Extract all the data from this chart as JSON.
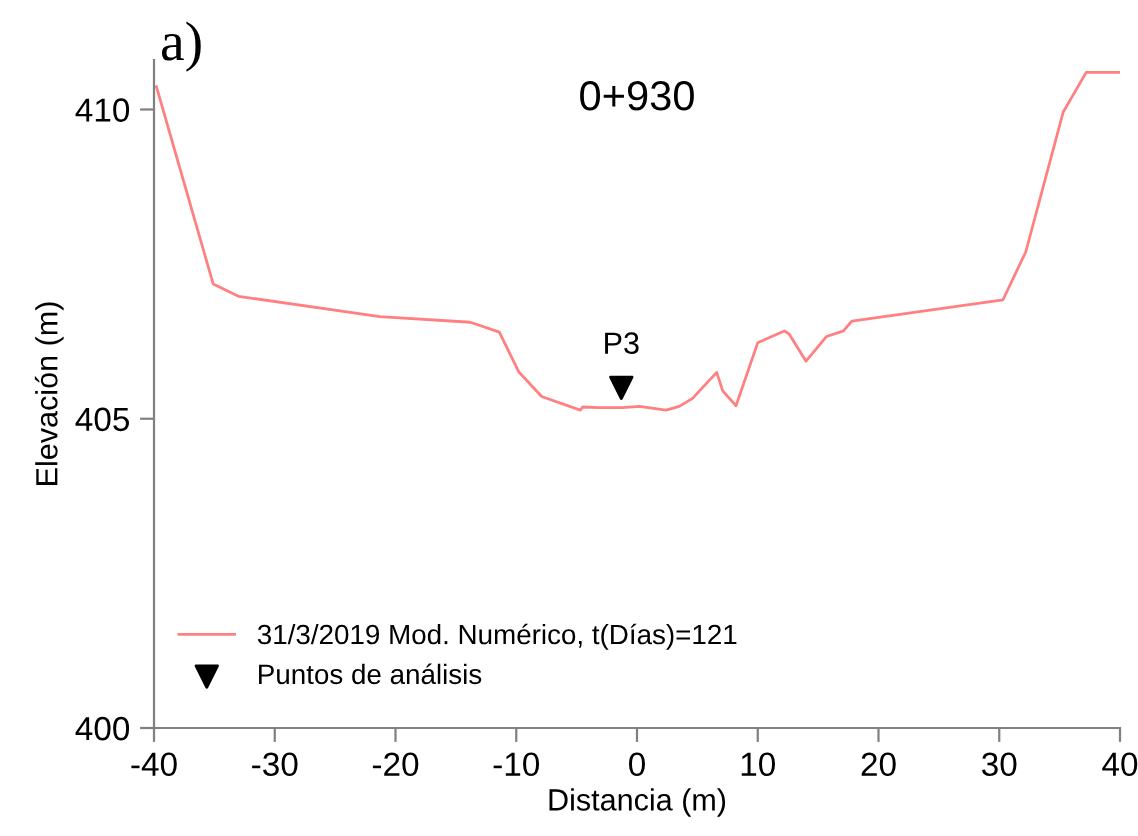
{
  "chart_data": {
    "type": "line",
    "title": "0+930",
    "xlabel": "Distancia (m)",
    "ylabel": "Elevación (m)",
    "x": [
      -39.8,
      -35.1,
      -33.0,
      -21.3,
      -13.8,
      -11.4,
      -9.8,
      -7.9,
      -4.7,
      -4.5,
      -3.1,
      -1.2,
      0.2,
      2.4,
      3.5,
      4.6,
      6.6,
      7.1,
      8.2,
      10.0,
      12.2,
      12.6,
      14.0,
      15.7,
      17.1,
      17.8,
      30.3,
      32.2,
      35.3,
      37.2,
      40
    ],
    "series": [
      {
        "name": "31/3/2019 Mod. Numérico, t(Días)=121",
        "color": "#ff8080",
        "values": [
          410.37,
          407.18,
          406.98,
          406.65,
          406.56,
          406.4,
          405.76,
          405.36,
          405.14,
          405.19,
          405.18,
          405.18,
          405.2,
          405.14,
          405.2,
          405.33,
          405.75,
          405.45,
          405.21,
          406.23,
          406.42,
          406.37,
          405.93,
          406.33,
          406.42,
          406.58,
          406.92,
          407.7,
          409.96,
          410.6,
          410.6
        ]
      },
      {
        "name": "Puntos de análisis",
        "type": "scatter",
        "marker": "triangle",
        "color": "#000000",
        "x": [
          -1.3
        ],
        "values": [
          405.5
        ]
      }
    ],
    "annotations": [
      "a)",
      {
        "text": "P3",
        "x": -1.3,
        "y": 405.5
      }
    ],
    "xlim": [
      -40,
      40
    ],
    "xticks": [
      -40,
      -30,
      -20,
      -10,
      0,
      10,
      20,
      30,
      40
    ],
    "ylim": [
      400,
      410.8
    ],
    "yticks": [
      400,
      405,
      410
    ],
    "grid": false,
    "legend": "bottom left"
  }
}
